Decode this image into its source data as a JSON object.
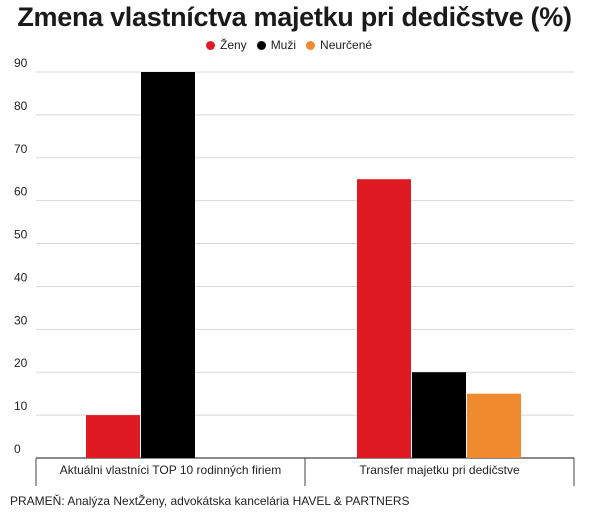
{
  "chart_data": {
    "type": "bar",
    "title": "Zmena vlastníctva majetku pri dedičstve (%)",
    "categories": [
      "Aktuálni vlastníci TOP 10 rodinných firiem",
      "Transfer majetku pri dedičstve"
    ],
    "series": [
      {
        "name": "Ženy",
        "color": "#e01a22",
        "values": [
          10,
          65
        ]
      },
      {
        "name": "Muži",
        "color": "#000000",
        "values": [
          90,
          20
        ]
      },
      {
        "name": "Neurčené",
        "color": "#f08a2e",
        "values": [
          null,
          15
        ]
      }
    ],
    "yticks": [
      0,
      10,
      20,
      30,
      40,
      50,
      60,
      70,
      80,
      90
    ],
    "ylim": [
      0,
      90
    ],
    "grid": true,
    "legend_position": "top-right"
  },
  "source": "PRAMEŇ:  Analýza  NextŽeny, advokátska kancelária HAVEL & PARTNERS"
}
